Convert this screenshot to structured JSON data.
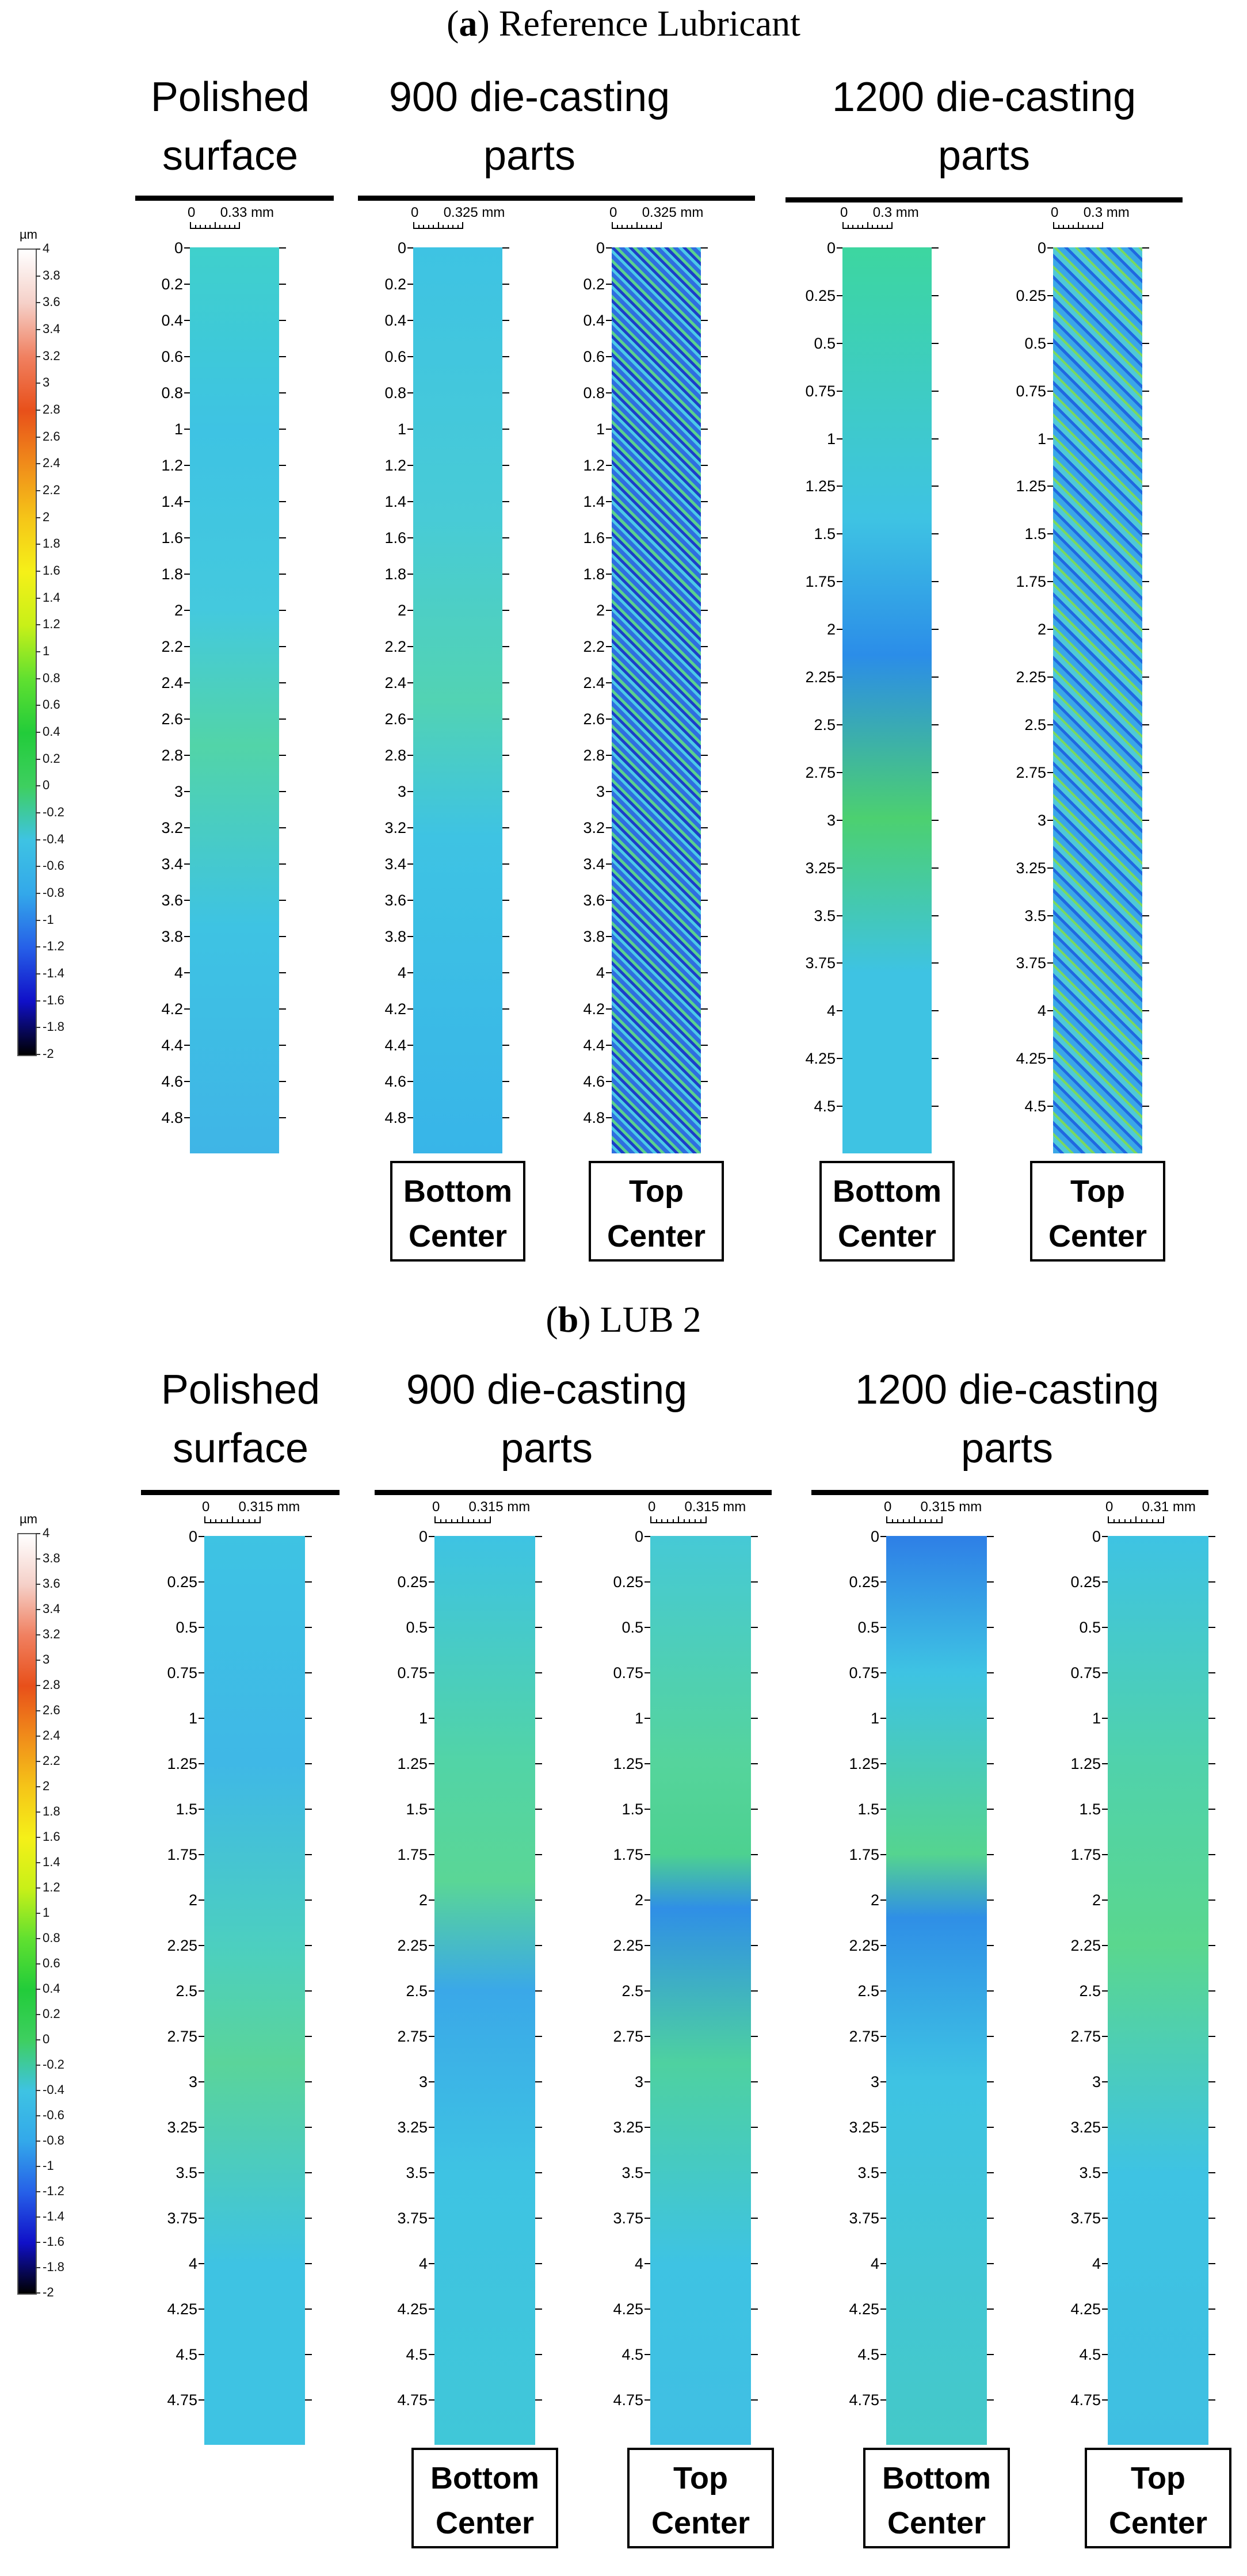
{
  "colorbar": {
    "unit": "µm",
    "ticks": [
      "4",
      "3.8",
      "3.6",
      "3.4",
      "3.2",
      "3",
      "2.8",
      "2.6",
      "2.4",
      "2.2",
      "2",
      "1.8",
      "1.6",
      "1.4",
      "1.2",
      "1",
      "0.8",
      "0.6",
      "0.4",
      "0.2",
      "0",
      "-0.2",
      "-0.4",
      "-0.6",
      "-0.8",
      "-1",
      "-1.2",
      "-1.4",
      "-1.6",
      "-1.8",
      "-2"
    ],
    "colors": [
      "#ffffff",
      "#f5d0c8",
      "#f08060",
      "#e8501a",
      "#f08c1a",
      "#f5c518",
      "#f5f018",
      "#c8f018",
      "#60e030",
      "#22cc3a",
      "#3ecf60",
      "#3ec3e3",
      "#33a8ea",
      "#2660e8",
      "#1010c8",
      "#000000"
    ]
  },
  "panels": [
    {
      "title_prefix": "(",
      "title_letter": "a",
      "title_suffix": ") Reference Lubricant",
      "groups": [
        {
          "label": "Polished surface"
        },
        {
          "label": "900 die-casting parts"
        },
        {
          "label": "1200 die-casting parts"
        }
      ],
      "scans": [
        {
          "scale_zero": "0",
          "scale_label": "0.33 mm",
          "depth_ticks": [
            "0",
            "0.2",
            "0.4",
            "0.6",
            "0.8",
            "1",
            "1.2",
            "1.4",
            "1.6",
            "1.8",
            "2",
            "2.2",
            "2.4",
            "2.6",
            "2.8",
            "3",
            "3.2",
            "3.4",
            "3.6",
            "3.8",
            "4",
            "4.2",
            "4.4",
            "4.6",
            "4.8"
          ],
          "caption": []
        },
        {
          "scale_zero": "0",
          "scale_label": "0.325 mm",
          "depth_ticks": [
            "0",
            "0.2",
            "0.4",
            "0.6",
            "0.8",
            "1",
            "1.2",
            "1.4",
            "1.6",
            "1.8",
            "2",
            "2.2",
            "2.4",
            "2.6",
            "2.8",
            "3",
            "3.2",
            "3.4",
            "3.6",
            "3.8",
            "4",
            "4.2",
            "4.4",
            "4.6",
            "4.8"
          ],
          "caption": [
            "Bottom",
            "Center"
          ]
        },
        {
          "scale_zero": "0",
          "scale_label": "0.325 mm",
          "depth_ticks": [
            "0",
            "0.2",
            "0.4",
            "0.6",
            "0.8",
            "1",
            "1.2",
            "1.4",
            "1.6",
            "1.8",
            "2",
            "2.2",
            "2.4",
            "2.6",
            "2.8",
            "3",
            "3.2",
            "3.4",
            "3.6",
            "3.8",
            "4",
            "4.2",
            "4.4",
            "4.6",
            "4.8"
          ],
          "caption": [
            "Top",
            "Center"
          ]
        },
        {
          "scale_zero": "0",
          "scale_label": "0.3 mm",
          "depth_ticks": [
            "0",
            "0.25",
            "0.5",
            "0.75",
            "1",
            "1.25",
            "1.5",
            "1.75",
            "2",
            "2.25",
            "2.5",
            "2.75",
            "3",
            "3.25",
            "3.5",
            "3.75",
            "4",
            "4.25",
            "4.5"
          ],
          "caption": [
            "Bottom",
            "Center"
          ]
        },
        {
          "scale_zero": "0",
          "scale_label": "0.3 mm",
          "depth_ticks": [
            "0",
            "0.25",
            "0.5",
            "0.75",
            "1",
            "1.25",
            "1.5",
            "1.75",
            "2",
            "2.25",
            "2.5",
            "2.75",
            "3",
            "3.25",
            "3.5",
            "3.75",
            "4",
            "4.25",
            "4.5"
          ],
          "caption": [
            "Top",
            "Center"
          ]
        }
      ]
    },
    {
      "title_prefix": "(",
      "title_letter": "b",
      "title_suffix": ") LUB 2",
      "groups": [
        {
          "label": "Polished surface"
        },
        {
          "label": "900 die-casting parts"
        },
        {
          "label": "1200 die-casting parts"
        }
      ],
      "scans": [
        {
          "scale_zero": "0",
          "scale_label": "0.315 mm",
          "depth_ticks": [
            "0",
            "0.25",
            "0.5",
            "0.75",
            "1",
            "1.25",
            "1.5",
            "1.75",
            "2",
            "2.25",
            "2.5",
            "2.75",
            "3",
            "3.25",
            "3.5",
            "3.75",
            "4",
            "4.25",
            "4.5",
            "4.75"
          ],
          "caption": []
        },
        {
          "scale_zero": "0",
          "scale_label": "0.315 mm",
          "depth_ticks": [
            "0",
            "0.25",
            "0.5",
            "0.75",
            "1",
            "1.25",
            "1.5",
            "1.75",
            "2",
            "2.25",
            "2.5",
            "2.75",
            "3",
            "3.25",
            "3.5",
            "3.75",
            "4",
            "4.25",
            "4.5",
            "4.75"
          ],
          "caption": [
            "Bottom",
            "Center"
          ]
        },
        {
          "scale_zero": "0",
          "scale_label": "0.315 mm",
          "depth_ticks": [
            "0",
            "0.25",
            "0.5",
            "0.75",
            "1",
            "1.25",
            "1.5",
            "1.75",
            "2",
            "2.25",
            "2.5",
            "2.75",
            "3",
            "3.25",
            "3.5",
            "3.75",
            "4",
            "4.25",
            "4.5",
            "4.75"
          ],
          "caption": [
            "Top",
            "Center"
          ]
        },
        {
          "scale_zero": "0",
          "scale_label": "0.315 mm",
          "depth_ticks": [
            "0",
            "0.25",
            "0.5",
            "0.75",
            "1",
            "1.25",
            "1.5",
            "1.75",
            "2",
            "2.25",
            "2.5",
            "2.75",
            "3",
            "3.25",
            "3.5",
            "3.75",
            "4",
            "4.25",
            "4.5",
            "4.75"
          ],
          "caption": [
            "Bottom",
            "Center"
          ]
        },
        {
          "scale_zero": "0",
          "scale_label": "0.31 mm",
          "depth_ticks": [
            "0",
            "0.25",
            "0.5",
            "0.75",
            "1",
            "1.25",
            "1.5",
            "1.75",
            "2",
            "2.25",
            "2.5",
            "2.75",
            "3",
            "3.25",
            "3.5",
            "3.75",
            "4",
            "4.25",
            "4.5",
            "4.75"
          ],
          "caption": [
            "Top",
            "Center"
          ]
        }
      ]
    }
  ]
}
